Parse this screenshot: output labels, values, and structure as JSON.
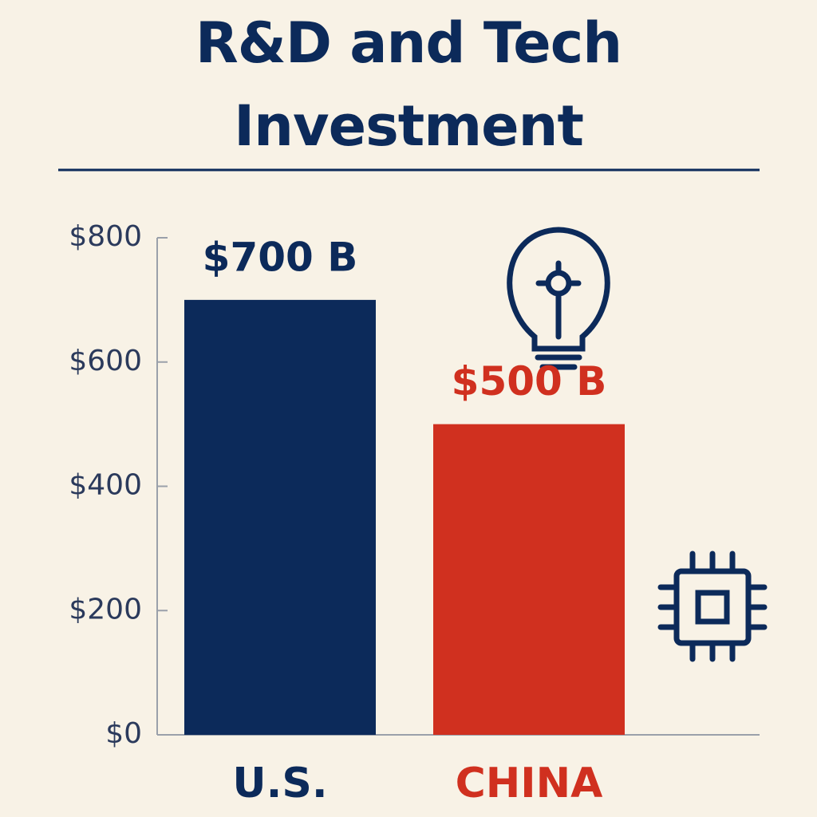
{
  "chart_data": {
    "type": "bar",
    "title": "R&D and Tech Investment",
    "categories": [
      "U.S.",
      "CHINA"
    ],
    "values": [
      700,
      500
    ],
    "value_labels": [
      "$700 B",
      "$500 B"
    ],
    "colors": [
      "#0c2a5a",
      "#d0301f"
    ],
    "ylim": [
      0,
      800
    ],
    "yticks": [
      {
        "value": 0,
        "label": "$0"
      },
      {
        "value": 200,
        "label": "$200"
      },
      {
        "value": 400,
        "label": "$400"
      },
      {
        "value": 600,
        "label": "$600"
      },
      {
        "value": 800,
        "label": "$800"
      }
    ]
  }
}
